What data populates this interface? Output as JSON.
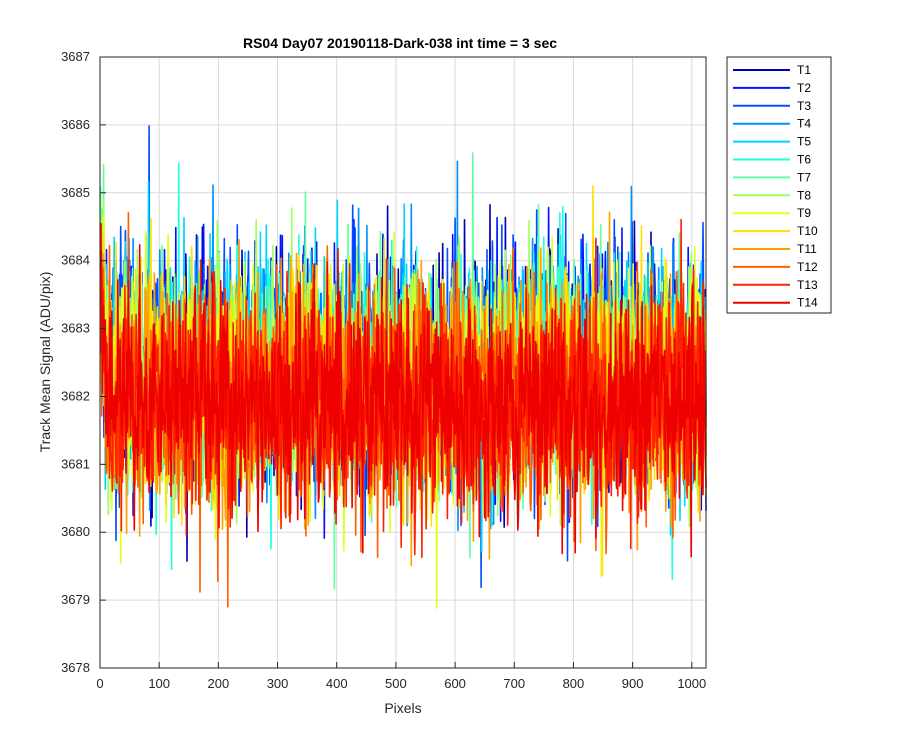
{
  "chart_data": {
    "type": "line",
    "title": "RS04 Day07 20190118-Dark-038 int time = 3 sec",
    "xlabel": "Pixels",
    "ylabel": "Track Mean Signal (ADU/pix)",
    "xlim": [
      0,
      1024
    ],
    "ylim": [
      3678,
      3687
    ],
    "xticks": [
      "0",
      "100",
      "200",
      "300",
      "400",
      "500",
      "600",
      "700",
      "800",
      "900",
      "1000"
    ],
    "yticks": [
      "3678",
      "3679",
      "3680",
      "3681",
      "3682",
      "3683",
      "3684",
      "3685",
      "3686",
      "3687"
    ],
    "grid": true,
    "legend_position": "outside-right",
    "n_points": 1024,
    "series": [
      {
        "name": "T1",
        "color": "#0000b3",
        "mean": 3682.4,
        "spread": 0.95
      },
      {
        "name": "T2",
        "color": "#0012ff",
        "mean": 3682.4,
        "spread": 0.95
      },
      {
        "name": "T3",
        "color": "#0050ff",
        "mean": 3682.4,
        "spread": 0.95
      },
      {
        "name": "T4",
        "color": "#0090ff",
        "mean": 3682.4,
        "spread": 0.95
      },
      {
        "name": "T5",
        "color": "#00d4ff",
        "mean": 3682.4,
        "spread": 0.95
      },
      {
        "name": "T6",
        "color": "#20ffe0",
        "mean": 3682.3,
        "spread": 0.95
      },
      {
        "name": "T7",
        "color": "#60ffa0",
        "mean": 3682.3,
        "spread": 0.95
      },
      {
        "name": "T8",
        "color": "#a0ff60",
        "mean": 3682.2,
        "spread": 0.95
      },
      {
        "name": "T9",
        "color": "#e0ff20",
        "mean": 3682.2,
        "spread": 0.95
      },
      {
        "name": "T10",
        "color": "#ffe000",
        "mean": 3682.1,
        "spread": 0.95
      },
      {
        "name": "T11",
        "color": "#ffa000",
        "mean": 3682.0,
        "spread": 0.95
      },
      {
        "name": "T12",
        "color": "#ff6000",
        "mean": 3682.0,
        "spread": 0.95
      },
      {
        "name": "T13",
        "color": "#ff2000",
        "mean": 3681.9,
        "spread": 0.95
      },
      {
        "name": "T14",
        "color": "#ee0000",
        "mean": 3681.9,
        "spread": 0.9
      }
    ]
  }
}
